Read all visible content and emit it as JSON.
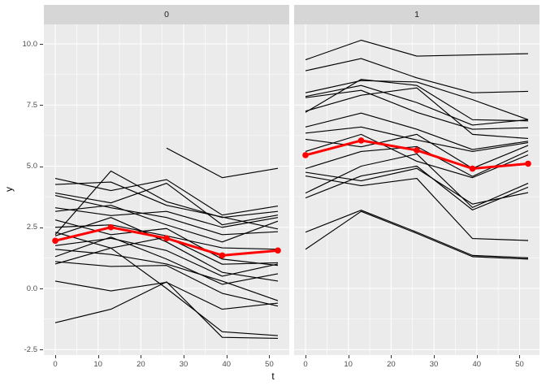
{
  "figure": {
    "background": "#ffffff",
    "panel_background": "#ebebeb",
    "strip_background": "#d6d6d6",
    "grid_color": "#ffffff",
    "tick_mark_color": "#333333",
    "tick_text_color": "#4d4d4d",
    "subject_line_color": "#000000",
    "mean_line_color": "#ff0000"
  },
  "chart_data": {
    "type": "line",
    "description": "Faceted spaghetti plot of individual trajectories y over t with red mean profile, facets 0 and 1",
    "grid": true,
    "legend": "none",
    "x": {
      "label": "t",
      "ticks": [
        0,
        10,
        20,
        30,
        40,
        50
      ],
      "minor_ticks": [
        5,
        15,
        25,
        35,
        45
      ],
      "range": [
        -2.6,
        54.6
      ],
      "measurement_times": [
        0,
        13,
        26,
        39,
        52
      ]
    },
    "y": {
      "label": "y",
      "ticks": [
        10.0,
        7.5,
        5.0,
        2.5,
        0.0,
        -2.5
      ],
      "tick_labels": [
        "10.0",
        "7.5",
        "5.0",
        "2.5",
        "0.0",
        "-2.5"
      ],
      "minor_ticks": [
        8.75,
        6.25,
        3.75,
        1.25,
        -1.25
      ],
      "range": [
        -2.72,
        10.8
      ]
    },
    "facets": [
      {
        "label": "0",
        "mean": {
          "t": [
            0,
            13,
            26,
            39,
            52
          ],
          "y": [
            1.95,
            2.5,
            2.05,
            1.35,
            1.55
          ]
        },
        "lines": [
          {
            "t": [
              0,
              13,
              26,
              39,
              52
            ],
            "y": [
              2.2,
              4.8,
              3.55,
              2.9,
              3.15
            ]
          },
          {
            "t": [
              0,
              13,
              26,
              39,
              52
            ],
            "y": [
              4.5,
              4.0,
              4.45,
              3.0,
              3.37
            ]
          },
          {
            "t": [
              0,
              13,
              26,
              39,
              52
            ],
            "y": [
              4.25,
              4.35,
              3.4,
              2.92,
              2.43
            ]
          },
          {
            "t": [
              0,
              13,
              26,
              39,
              52
            ],
            "y": [
              3.9,
              3.5,
              4.3,
              2.6,
              3.0
            ]
          },
          {
            "t": [
              0,
              13,
              26,
              39,
              52
            ],
            "y": [
              3.8,
              3.3,
              2.9,
              2.2,
              2.32
            ]
          },
          {
            "t": [
              0,
              13,
              26,
              39,
              52
            ],
            "y": [
              3.3,
              2.98,
              3.15,
              2.5,
              2.9
            ]
          },
          {
            "t": [
              0,
              13,
              26,
              39,
              52
            ],
            "y": [
              3.15,
              3.4,
              2.6,
              1.9,
              2.75
            ]
          },
          {
            "t": [
              0,
              13,
              26,
              39,
              52
            ],
            "y": [
              2.8,
              2.2,
              2.45,
              1.2,
              0.94
            ]
          },
          {
            "t": [
              0,
              13,
              26,
              39,
              52
            ],
            "y": [
              2.5,
              2.6,
              2.15,
              1.66,
              1.6
            ]
          },
          {
            "t": [
              0,
              13,
              26,
              39,
              52
            ],
            "y": [
              2.3,
              1.65,
              2.1,
              0.99,
              1.05
            ]
          },
          {
            "t": [
              0,
              13,
              26,
              39,
              52
            ],
            "y": [
              2.15,
              2.9,
              1.9,
              0.66,
              0.3
            ]
          },
          {
            "t": [
              0,
              13,
              26,
              39,
              52
            ],
            "y": [
              1.75,
              2.05,
              1.55,
              0.5,
              1.0
            ]
          },
          {
            "t": [
              0,
              13,
              26,
              39,
              52
            ],
            "y": [
              1.6,
              1.39,
              1.0,
              0.3,
              -0.5
            ]
          },
          {
            "t": [
              0,
              13,
              26,
              39,
              52
            ],
            "y": [
              1.3,
              2.1,
              1.2,
              0.17,
              0.6
            ]
          },
          {
            "t": [
              0,
              13,
              26,
              39,
              52
            ],
            "y": [
              1.1,
              0.9,
              0.94,
              -0.2,
              -0.72
            ]
          },
          {
            "t": [
              0,
              13,
              26,
              39,
              52
            ],
            "y": [
              1.0,
              1.65,
              0.0,
              -1.77,
              -1.93
            ]
          },
          {
            "t": [
              0,
              13,
              26,
              39,
              52
            ],
            "y": [
              0.3,
              -0.1,
              0.25,
              -0.85,
              -0.6
            ]
          },
          {
            "t": [
              0,
              13,
              26,
              39,
              52
            ],
            "y": [
              -1.4,
              -0.85,
              0.27,
              -2.0,
              -2.04
            ]
          },
          {
            "t": [
              26,
              39,
              52
            ],
            "y": [
              5.74,
              4.53,
              4.91
            ]
          }
        ]
      },
      {
        "label": "1",
        "mean": {
          "t": [
            0,
            13,
            26,
            39,
            52
          ],
          "y": [
            5.45,
            6.05,
            5.65,
            4.9,
            5.1
          ]
        },
        "lines": [
          {
            "t": [
              0,
              13,
              26,
              39,
              52
            ],
            "y": [
              9.35,
              10.15,
              9.5,
              9.55,
              9.6
            ]
          },
          {
            "t": [
              0,
              13,
              26,
              39,
              52
            ],
            "y": [
              8.9,
              9.4,
              8.61,
              8.0,
              8.06
            ]
          },
          {
            "t": [
              0,
              13,
              26,
              39,
              52
            ],
            "y": [
              8.0,
              8.5,
              8.44,
              7.72,
              6.9
            ]
          },
          {
            "t": [
              0,
              13,
              26,
              39,
              52
            ],
            "y": [
              7.85,
              8.3,
              7.6,
              6.68,
              6.9
            ]
          },
          {
            "t": [
              0,
              13,
              26,
              39,
              52
            ],
            "y": [
              7.8,
              8.1,
              7.2,
              6.51,
              6.57
            ]
          },
          {
            "t": [
              0,
              13,
              26,
              39,
              52
            ],
            "y": [
              7.25,
              7.9,
              8.2,
              6.3,
              6.13
            ]
          },
          {
            "t": [
              0,
              13,
              26,
              39,
              52
            ],
            "y": [
              7.2,
              8.55,
              8.3,
              6.9,
              6.85
            ]
          },
          {
            "t": [
              0,
              13,
              26,
              39,
              52
            ],
            "y": [
              6.6,
              7.17,
              6.51,
              5.68,
              6.02
            ]
          },
          {
            "t": [
              0,
              13,
              26,
              39,
              52
            ],
            "y": [
              6.35,
              6.6,
              6.07,
              5.6,
              5.96
            ]
          },
          {
            "t": [
              0,
              13,
              26,
              39,
              52
            ],
            "y": [
              6.1,
              5.79,
              6.3,
              4.91,
              5.85
            ]
          },
          {
            "t": [
              0,
              13,
              26,
              39,
              52
            ],
            "y": [
              5.6,
              6.3,
              5.2,
              4.53,
              5.46
            ]
          },
          {
            "t": [
              0,
              13,
              26,
              39,
              52
            ],
            "y": [
              4.9,
              5.6,
              5.8,
              4.58,
              5.63
            ]
          },
          {
            "t": [
              0,
              13,
              26,
              39,
              52
            ],
            "y": [
              4.75,
              4.4,
              4.91,
              3.45,
              3.92
            ]
          },
          {
            "t": [
              0,
              13,
              26,
              39,
              52
            ],
            "y": [
              4.6,
              4.2,
              4.5,
              2.04,
              1.96
            ]
          },
          {
            "t": [
              0,
              13,
              26,
              39,
              52
            ],
            "y": [
              3.9,
              5.0,
              5.5,
              3.31,
              4.3
            ]
          },
          {
            "t": [
              0,
              13,
              26,
              39,
              52
            ],
            "y": [
              3.7,
              4.6,
              5.0,
              3.21,
              4.14
            ]
          },
          {
            "t": [
              0,
              13,
              26,
              39,
              52
            ],
            "y": [
              2.3,
              3.2,
              2.3,
              1.35,
              1.25
            ]
          },
          {
            "t": [
              0,
              13,
              26,
              39,
              52
            ],
            "y": [
              1.6,
              3.15,
              2.25,
              1.3,
              1.2
            ]
          }
        ]
      }
    ]
  }
}
